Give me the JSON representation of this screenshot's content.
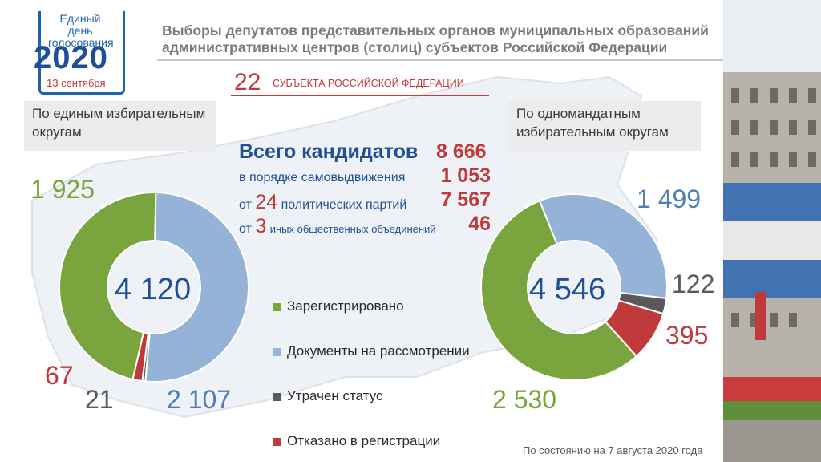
{
  "logo": {
    "line1": "Единый день голосования",
    "year": "2020",
    "date": "13 сентября"
  },
  "title": "Выборы депутатов представительных органов муниципальных образований административных центров (столиц) субъектов Российской Федерации",
  "subjects": {
    "count": "22",
    "label": "СУБЪЕКТА РОССИЙСКОЙ ФЕДЕРАЦИИ"
  },
  "left_label": "По единым избирательным округам",
  "right_label": "По одномандатным избирательным округам",
  "totals": {
    "heading": "Всего кандидатов",
    "total": "8 666",
    "self_label": "в порядке самовыдвижения",
    "self_value": "1 053",
    "parties_prefix": "от",
    "parties_count": "24",
    "parties_label": "политических партий",
    "parties_value": "7 567",
    "orgs_prefix": "от",
    "orgs_count": "3",
    "orgs_label": "иных общественных объединений",
    "orgs_value": "46"
  },
  "colors": {
    "registered": "#7aa43e",
    "review": "#95b3d7",
    "lost": "#595959",
    "refused": "#c0393b"
  },
  "legend": [
    "Зарегистрировано",
    "Документы на рассмотрении",
    "Утрачен статус",
    "Отказано в регистрации"
  ],
  "footer": "По состоянию на 7 августа 2020 года",
  "chart_data": [
    {
      "type": "pie",
      "title": "По единым избирательным округам",
      "center_label": "4 120",
      "categories": [
        "Зарегистрировано",
        "Документы на рассмотрении",
        "Утрачен статус",
        "Отказано в регистрации"
      ],
      "values": [
        1925,
        2107,
        21,
        67
      ],
      "value_labels": [
        "1 925",
        "2 107",
        "21",
        "67"
      ]
    },
    {
      "type": "pie",
      "title": "По одномандатным избирательным округам",
      "center_label": "4 546",
      "categories": [
        "Зарегистрировано",
        "Документы на рассмотрении",
        "Утрачен статус",
        "Отказано в регистрации"
      ],
      "values": [
        2530,
        1499,
        122,
        395
      ],
      "value_labels": [
        "2 530",
        "1 499",
        "122",
        "395"
      ]
    }
  ]
}
